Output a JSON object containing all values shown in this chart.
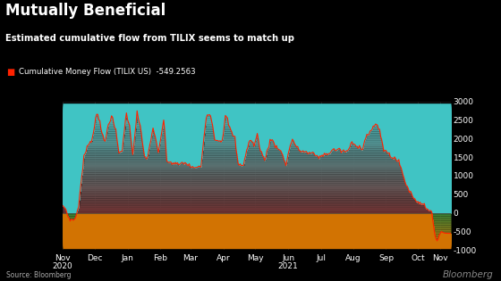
{
  "title": "Mutually Beneficial",
  "subtitle": "Estimated cumulative flow from TILIX seems to match up",
  "legend_label": "Cumulative Money Flow (TILIX US)  -549.2563",
  "legend_color": "#ff2200",
  "source": "Source: Bloomberg",
  "watermark": "Bloomberg",
  "background_color": "#000000",
  "grid_color": "#2a2a2a",
  "title_color": "#ffffff",
  "subtitle_color": "#ffffff",
  "ylim": [
    -1000,
    3000
  ],
  "yticks": [
    -1000,
    -500,
    0,
    500,
    1000,
    1500,
    2000,
    2500,
    3000
  ],
  "line_color": "#ff2200",
  "months": [
    "Nov\n2020",
    "Dec",
    "Jan",
    "Feb",
    "Mar",
    "Apr",
    "May",
    "Jun\n2021",
    "Jul",
    "Aug",
    "Sep",
    "Oct",
    "Nov"
  ],
  "x_positions": [
    0,
    30,
    61,
    92,
    120,
    151,
    181,
    212,
    243,
    273,
    304,
    334,
    355
  ],
  "flow_points": [
    [
      0,
      200
    ],
    [
      3,
      100
    ],
    [
      5,
      -100
    ],
    [
      8,
      -200
    ],
    [
      10,
      -180
    ],
    [
      12,
      -150
    ],
    [
      15,
      200
    ],
    [
      20,
      1500
    ],
    [
      25,
      1900
    ],
    [
      28,
      2000
    ],
    [
      32,
      2700
    ],
    [
      35,
      2500
    ],
    [
      37,
      2100
    ],
    [
      40,
      1900
    ],
    [
      43,
      2400
    ],
    [
      46,
      2600
    ],
    [
      50,
      2200
    ],
    [
      53,
      1600
    ],
    [
      56,
      1700
    ],
    [
      60,
      2700
    ],
    [
      63,
      2300
    ],
    [
      66,
      1600
    ],
    [
      70,
      2700
    ],
    [
      73,
      2300
    ],
    [
      77,
      1500
    ],
    [
      80,
      1500
    ],
    [
      85,
      2300
    ],
    [
      90,
      1600
    ],
    [
      95,
      2500
    ],
    [
      98,
      1400
    ],
    [
      102,
      1350
    ],
    [
      108,
      1300
    ],
    [
      115,
      1350
    ],
    [
      120,
      1250
    ],
    [
      125,
      1200
    ],
    [
      130,
      1250
    ],
    [
      135,
      2600
    ],
    [
      138,
      2700
    ],
    [
      140,
      2500
    ],
    [
      143,
      2000
    ],
    [
      146,
      1950
    ],
    [
      150,
      1950
    ],
    [
      153,
      2600
    ],
    [
      155,
      2500
    ],
    [
      158,
      2200
    ],
    [
      162,
      2000
    ],
    [
      165,
      1300
    ],
    [
      170,
      1300
    ],
    [
      175,
      1900
    ],
    [
      178,
      1950
    ],
    [
      180,
      1800
    ],
    [
      183,
      2100
    ],
    [
      186,
      1700
    ],
    [
      190,
      1400
    ],
    [
      193,
      1750
    ],
    [
      196,
      2000
    ],
    [
      200,
      1800
    ],
    [
      203,
      1750
    ],
    [
      206,
      1600
    ],
    [
      210,
      1300
    ],
    [
      213,
      1700
    ],
    [
      216,
      2000
    ],
    [
      219,
      1800
    ],
    [
      222,
      1700
    ],
    [
      225,
      1650
    ],
    [
      228,
      1650
    ],
    [
      231,
      1600
    ],
    [
      235,
      1600
    ],
    [
      238,
      1550
    ],
    [
      242,
      1500
    ],
    [
      245,
      1550
    ],
    [
      248,
      1600
    ],
    [
      251,
      1600
    ],
    [
      254,
      1700
    ],
    [
      257,
      1700
    ],
    [
      260,
      1700
    ],
    [
      263,
      1650
    ],
    [
      266,
      1650
    ],
    [
      269,
      1700
    ],
    [
      272,
      1900
    ],
    [
      275,
      1800
    ],
    [
      278,
      1800
    ],
    [
      282,
      1750
    ],
    [
      286,
      2100
    ],
    [
      290,
      2200
    ],
    [
      294,
      2400
    ],
    [
      298,
      2200
    ],
    [
      302,
      1700
    ],
    [
      306,
      1600
    ],
    [
      310,
      1500
    ],
    [
      313,
      1450
    ],
    [
      315,
      1400
    ],
    [
      318,
      1250
    ],
    [
      320,
      1000
    ],
    [
      322,
      850
    ],
    [
      324,
      700
    ],
    [
      326,
      600
    ],
    [
      328,
      500
    ],
    [
      330,
      400
    ],
    [
      332,
      350
    ],
    [
      334,
      300
    ],
    [
      336,
      280
    ],
    [
      338,
      250
    ],
    [
      340,
      200
    ],
    [
      342,
      150
    ],
    [
      344,
      100
    ],
    [
      346,
      50
    ],
    [
      347,
      30
    ],
    [
      348,
      -200
    ],
    [
      349,
      -400
    ],
    [
      350,
      -600
    ],
    [
      351,
      -700
    ],
    [
      352,
      -750
    ],
    [
      353,
      -700
    ],
    [
      354,
      -600
    ],
    [
      355,
      -550
    ],
    [
      356,
      -500
    ],
    [
      357,
      -520
    ],
    [
      358,
      -530
    ],
    [
      359,
      -540
    ],
    [
      360,
      -545
    ],
    [
      365,
      -549
    ]
  ]
}
